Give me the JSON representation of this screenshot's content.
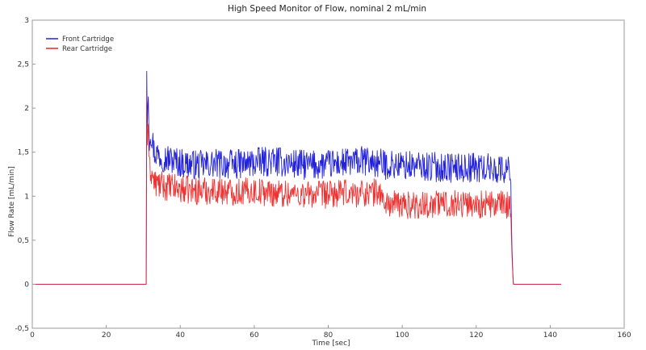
{
  "chart_data": {
    "type": "line",
    "title": "High Speed Monitor of Flow, nominal 2 mL/min",
    "xlabel": "Time [sec]",
    "ylabel": "Flow Rate [mL/min]",
    "xlim": [
      0,
      160
    ],
    "ylim": [
      -0.5,
      3
    ],
    "xticks": [
      "0",
      "20",
      "40",
      "60",
      "80",
      "100",
      "120",
      "140",
      "160"
    ],
    "yticks": [
      "-0,5",
      "0",
      "0,5",
      "1",
      "1,5",
      "2",
      "2,5",
      "3"
    ],
    "grid": false,
    "legend": "top-left",
    "series": [
      {
        "name": "Front Cartridge",
        "color": "#2222dd",
        "x": [
          0,
          30.8,
          30.9,
          31.1,
          31.3,
          31.6,
          32,
          33,
          35,
          40,
          45,
          50,
          55,
          60,
          65,
          70,
          75,
          80,
          85,
          90,
          95,
          100,
          105,
          110,
          115,
          120,
          125,
          128,
          129.3,
          129.6,
          130,
          135,
          140,
          143
        ],
        "values": [
          0,
          0,
          2.6,
          1.7,
          2.25,
          1.65,
          1.75,
          1.5,
          1.45,
          1.38,
          1.35,
          1.37,
          1.36,
          1.38,
          1.4,
          1.37,
          1.35,
          1.36,
          1.38,
          1.4,
          1.36,
          1.35,
          1.34,
          1.33,
          1.32,
          1.33,
          1.31,
          1.3,
          1.3,
          0.5,
          0.0,
          0,
          0,
          0
        ],
        "noise_amplitude": 0.17
      },
      {
        "name": "Rear Cartridge",
        "color": "#ee2222",
        "x": [
          0,
          30.8,
          30.9,
          31.1,
          31.3,
          31.6,
          32,
          33,
          35,
          40,
          45,
          50,
          55,
          60,
          65,
          70,
          75,
          80,
          85,
          90,
          94,
          95,
          100,
          105,
          110,
          115,
          120,
          125,
          128,
          129.3,
          129.6,
          130,
          135,
          140,
          143
        ],
        "values": [
          0,
          0,
          2.3,
          1.5,
          1.95,
          1.3,
          1.3,
          1.15,
          1.12,
          1.08,
          1.06,
          1.07,
          1.05,
          1.06,
          1.04,
          1.03,
          1.02,
          1.02,
          1.03,
          1.04,
          1.05,
          0.92,
          0.9,
          0.9,
          0.92,
          0.92,
          0.91,
          0.9,
          0.9,
          0.9,
          0.4,
          0.0,
          0,
          0,
          0
        ],
        "noise_amplitude": 0.16
      }
    ]
  }
}
